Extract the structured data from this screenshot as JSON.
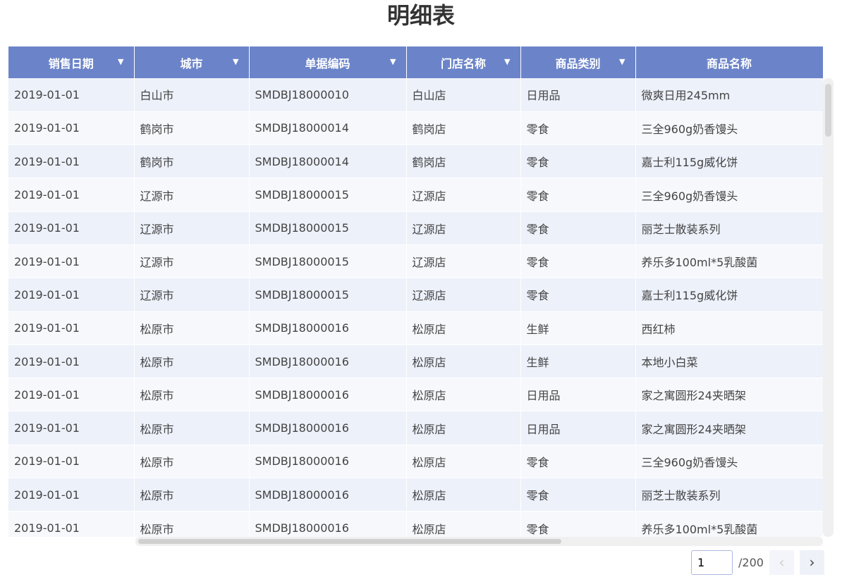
{
  "title": "明细表",
  "columns": [
    "销售日期",
    "城市",
    "单据编码",
    "门店名称",
    "商品类别",
    "商品名称"
  ],
  "filter_columns": [
    true,
    true,
    true,
    true,
    true,
    false
  ],
  "rows": [
    [
      "2019-01-01",
      "白山市",
      "SMDBJ18000010",
      "白山店",
      "日用品",
      "微爽日用245mm"
    ],
    [
      "2019-01-01",
      "鹤岗市",
      "SMDBJ18000014",
      "鹤岗店",
      "零食",
      "三全960g奶香馒头"
    ],
    [
      "2019-01-01",
      "鹤岗市",
      "SMDBJ18000014",
      "鹤岗店",
      "零食",
      "嘉士利115g威化饼"
    ],
    [
      "2019-01-01",
      "辽源市",
      "SMDBJ18000015",
      "辽源店",
      "零食",
      "三全960g奶香馒头"
    ],
    [
      "2019-01-01",
      "辽源市",
      "SMDBJ18000015",
      "辽源店",
      "零食",
      "丽芝士散装系列"
    ],
    [
      "2019-01-01",
      "辽源市",
      "SMDBJ18000015",
      "辽源店",
      "零食",
      "养乐多100ml*5乳酸菌"
    ],
    [
      "2019-01-01",
      "辽源市",
      "SMDBJ18000015",
      "辽源店",
      "零食",
      "嘉士利115g威化饼"
    ],
    [
      "2019-01-01",
      "松原市",
      "SMDBJ18000016",
      "松原店",
      "生鲜",
      "西红柿"
    ],
    [
      "2019-01-01",
      "松原市",
      "SMDBJ18000016",
      "松原店",
      "生鲜",
      "本地小白菜"
    ],
    [
      "2019-01-01",
      "松原市",
      "SMDBJ18000016",
      "松原店",
      "日用品",
      "家之寓圆形24夹晒架"
    ],
    [
      "2019-01-01",
      "松原市",
      "SMDBJ18000016",
      "松原店",
      "日用品",
      "家之寓圆形24夹晒架"
    ],
    [
      "2019-01-01",
      "松原市",
      "SMDBJ18000016",
      "松原店",
      "零食",
      "三全960g奶香馒头"
    ],
    [
      "2019-01-01",
      "松原市",
      "SMDBJ18000016",
      "松原店",
      "零食",
      "丽芝士散装系列"
    ],
    [
      "2019-01-01",
      "松原市",
      "SMDBJ18000016",
      "松原店",
      "零食",
      "养乐多100ml*5乳酸菌"
    ]
  ],
  "pager": {
    "current_page": "1",
    "total": "/200",
    "prev_icon": "chevron-left",
    "next_icon": "chevron-right",
    "prev_disabled": true
  },
  "colors": {
    "header": "#6b84c9",
    "row_odd": "#edf1fa",
    "row_even": "#f6f8fc"
  }
}
